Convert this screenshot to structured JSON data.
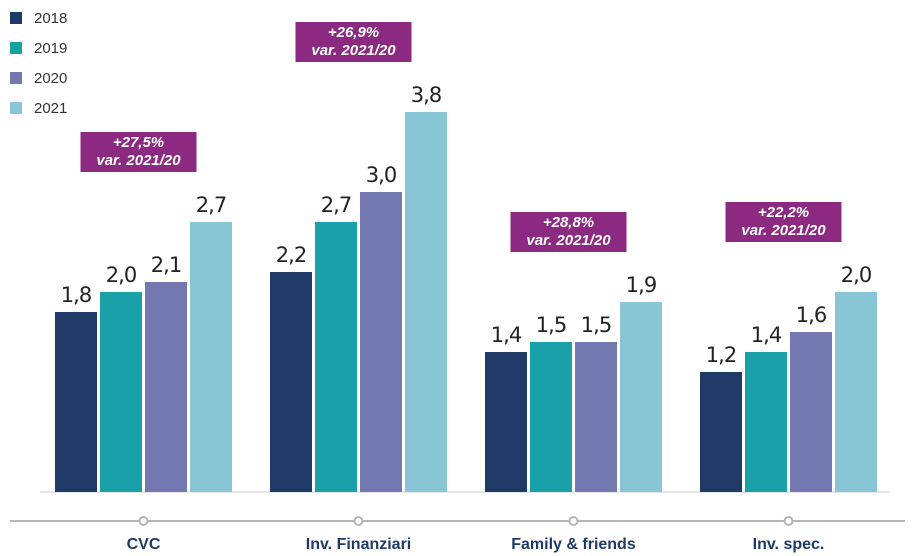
{
  "chart_data": {
    "type": "bar",
    "categories": [
      "CVC",
      "Inv. Finanziari",
      "Family & friends",
      "Inv. spec."
    ],
    "series": [
      {
        "name": "2018",
        "color": "#1f3a66",
        "values": [
          1.8,
          2.2,
          1.4,
          1.2
        ],
        "value_labels": [
          "1,8",
          "2,2",
          "1,4",
          "1,2"
        ]
      },
      {
        "name": "2019",
        "color": "#1aa0a8",
        "values": [
          2.0,
          2.7,
          1.5,
          1.4
        ],
        "value_labels": [
          "2,0",
          "2,7",
          "1,5",
          "1,4"
        ]
      },
      {
        "name": "2020",
        "color": "#7478b1",
        "values": [
          2.1,
          3.0,
          1.5,
          1.6
        ],
        "value_labels": [
          "2,1",
          "3,0",
          "1,5",
          "1,6"
        ]
      },
      {
        "name": "2021",
        "color": "#88c6d6",
        "values": [
          2.7,
          3.8,
          1.9,
          2.0
        ],
        "value_labels": [
          "2,7",
          "3,8",
          "1,9",
          "2,0"
        ]
      }
    ],
    "annotations": [
      [
        "+27,5%",
        "var. 2021/20"
      ],
      [
        "+26,9%",
        "var. 2021/20"
      ],
      [
        "+28,8%",
        "var. 2021/20"
      ],
      [
        "+22,2%",
        "var. 2021/20"
      ]
    ],
    "annotation_color": "#8c2a82",
    "ylim": [
      0,
      4
    ],
    "legend": "top-left"
  }
}
